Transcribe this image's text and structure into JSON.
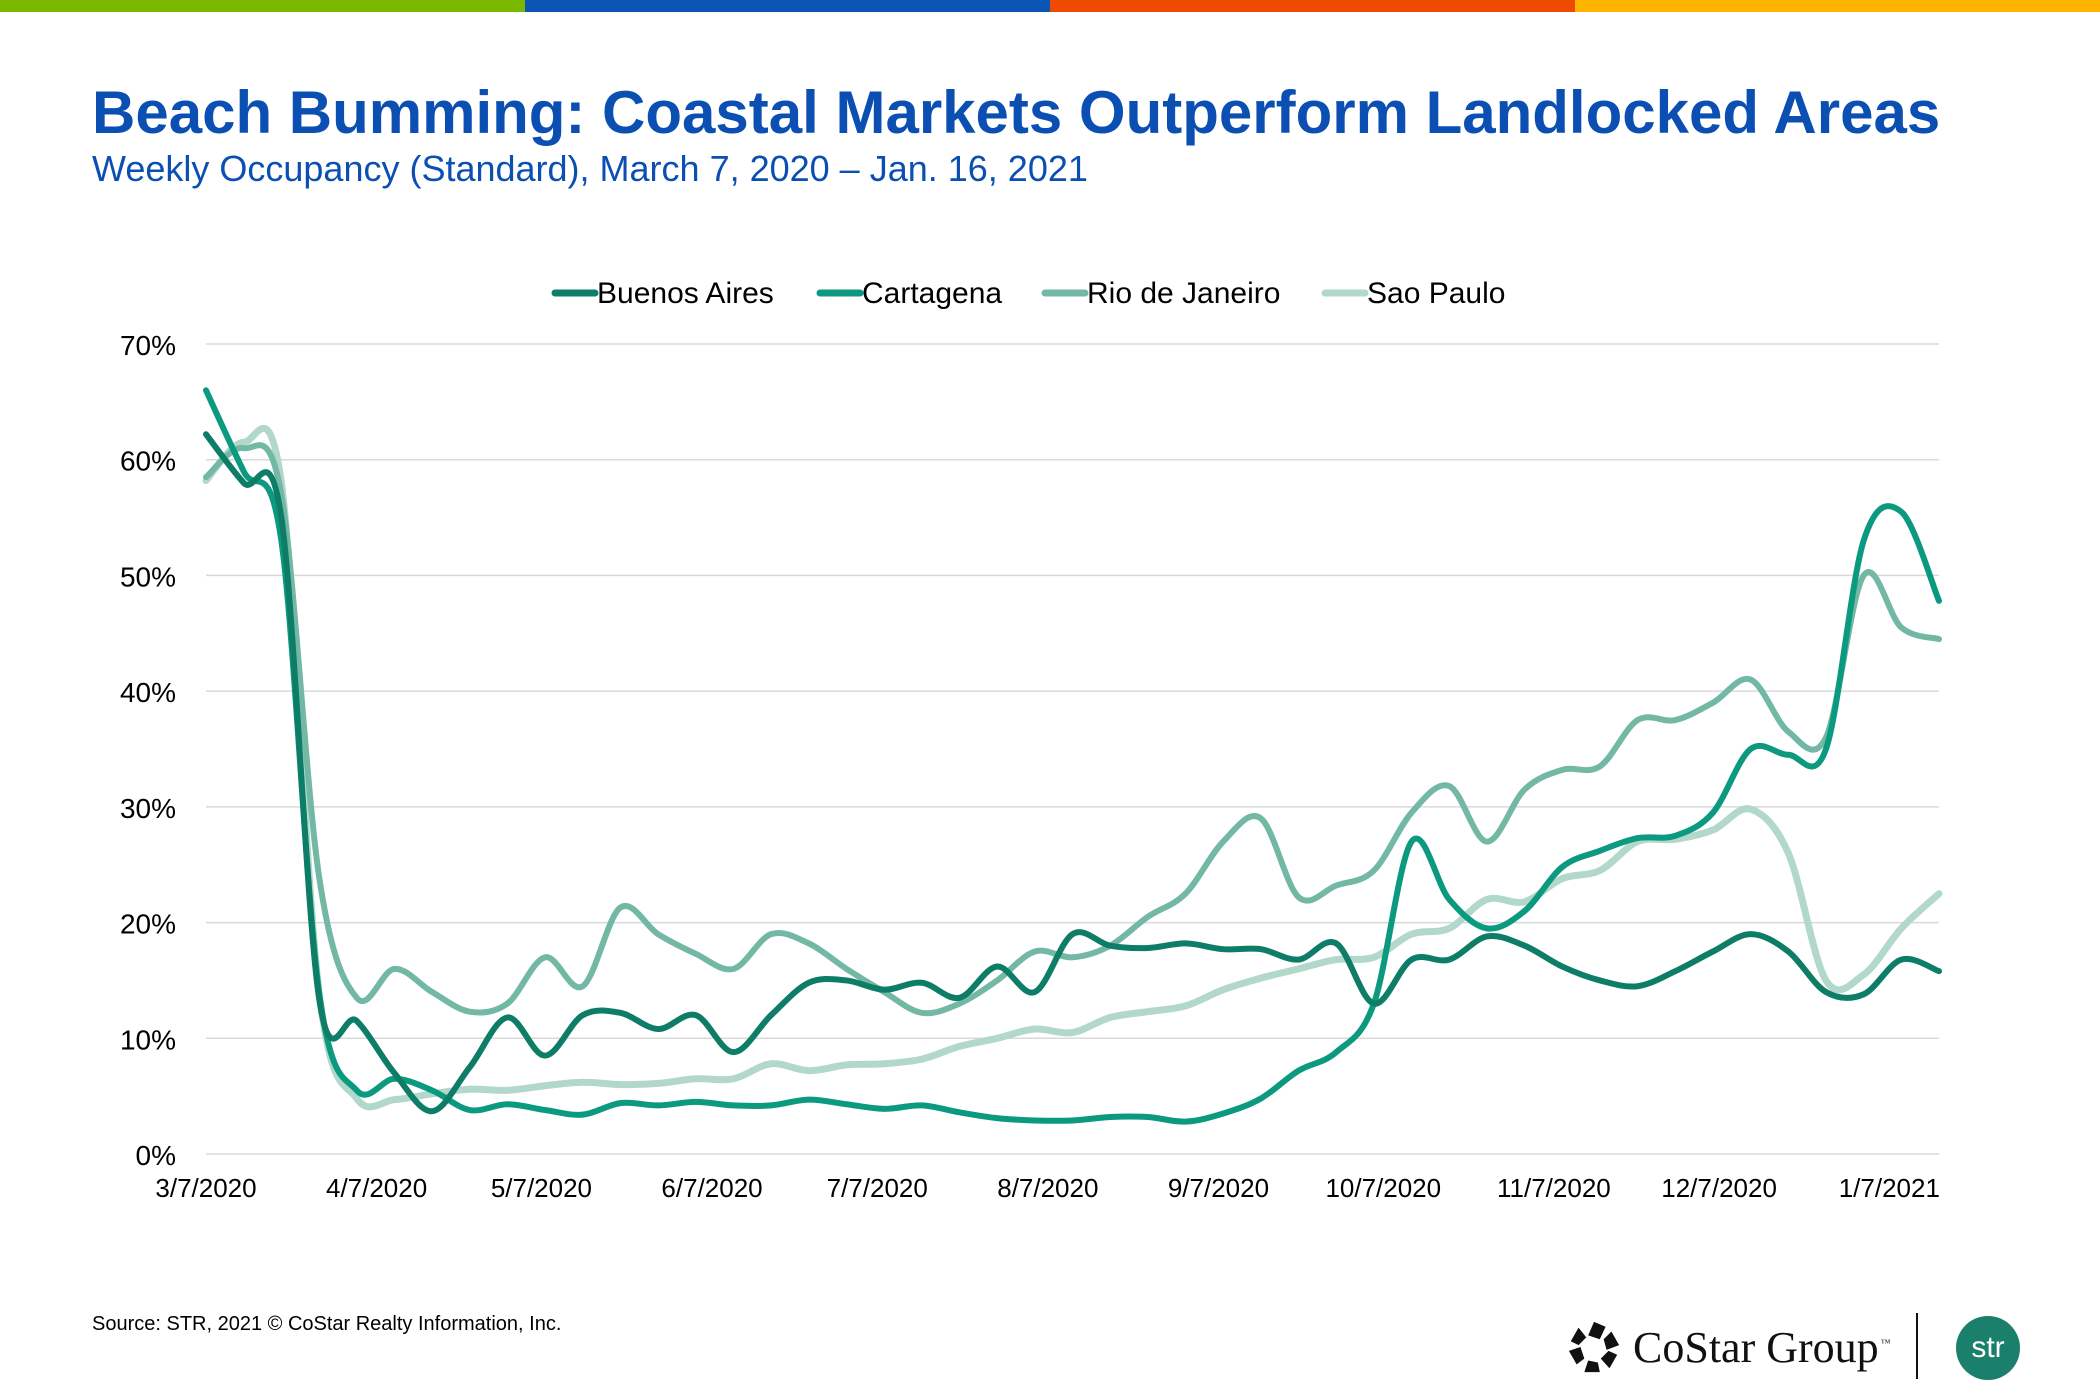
{
  "header": {
    "title": "Beach Bumming: Coastal Markets Outperform Landlocked Areas",
    "subtitle": "Weekly Occupancy (Standard), March 7, 2020 – Jan. 16, 2021",
    "bar_colors": [
      "#7AB800",
      "#0B55B5",
      "#EE4B00",
      "#FFB500"
    ]
  },
  "footer": {
    "source": "Source: STR, 2021 © CoStar Realty Information, Inc.",
    "costar_logo": "CoStar Group",
    "costar_tm": "™",
    "str_logo": "str"
  },
  "chart_data": {
    "type": "line",
    "title": "Weekly Occupancy (Standard), March 7, 2020 – Jan. 16, 2021",
    "xlabel": "",
    "ylabel": "",
    "ylim": [
      0,
      70
    ],
    "yticks": [
      0,
      10,
      20,
      30,
      40,
      50,
      60,
      70
    ],
    "ytick_labels": [
      "0%",
      "10%",
      "20%",
      "30%",
      "40%",
      "50%",
      "60%",
      "70%"
    ],
    "xtick_labels": [
      "3/7/2020",
      "4/7/2020",
      "5/7/2020",
      "6/7/2020",
      "7/7/2020",
      "8/7/2020",
      "9/7/2020",
      "10/7/2020",
      "11/7/2020",
      "12/7/2020",
      "1/7/2021"
    ],
    "xtick_weeks": [
      0,
      4.43,
      8.71,
      13.14,
      17.43,
      21.86,
      26.29,
      30.57,
      35.0,
      39.29,
      43.71
    ],
    "weeks": 46,
    "grid": true,
    "legend_position": "top-center",
    "series": [
      {
        "name": "Buenos Aires",
        "color": "#0E7D68",
        "values": [
          62.2,
          58.0,
          55.0,
          13.5,
          11.5,
          7.0,
          3.7,
          7.5,
          11.8,
          8.5,
          12.0,
          12.2,
          10.8,
          12.0,
          8.8,
          12.0,
          14.8,
          15.0,
          14.2,
          14.8,
          13.5,
          16.2,
          14.0,
          19.0,
          18.0,
          17.8,
          18.2,
          17.7,
          17.7,
          16.8,
          18.2,
          13.0,
          16.8,
          16.8,
          18.8,
          18.0,
          16.2,
          15.0,
          14.5,
          15.8,
          17.5,
          19.0,
          17.5,
          14.0,
          13.8,
          16.8,
          15.8
        ]
      },
      {
        "name": "Cartagena",
        "color": "#0B9A7F",
        "values": [
          66.0,
          59.0,
          53.0,
          14.0,
          5.5,
          6.5,
          5.5,
          3.8,
          4.3,
          3.8,
          3.4,
          4.4,
          4.2,
          4.5,
          4.2,
          4.2,
          4.7,
          4.3,
          3.9,
          4.2,
          3.6,
          3.1,
          2.9,
          2.9,
          3.2,
          3.2,
          2.8,
          3.5,
          4.8,
          7.2,
          8.8,
          13.0,
          27.0,
          22.0,
          19.5,
          21.0,
          24.8,
          26.2,
          27.3,
          27.5,
          29.5,
          35.0,
          34.5,
          35.0,
          53.0,
          55.5,
          47.8
        ]
      },
      {
        "name": "Rio de Janeiro",
        "color": "#72B8A4",
        "values": [
          58.5,
          61.0,
          57.0,
          24.0,
          13.5,
          16.0,
          14.0,
          12.3,
          13.0,
          17.0,
          14.5,
          21.3,
          19.0,
          17.3,
          16.0,
          19.0,
          18.2,
          16.0,
          14.0,
          12.2,
          13.0,
          15.0,
          17.5,
          17.0,
          18.0,
          20.5,
          22.5,
          27.0,
          29.0,
          22.2,
          23.2,
          24.5,
          29.5,
          31.8,
          27.0,
          31.5,
          33.2,
          33.5,
          37.5,
          37.5,
          39.0,
          41.0,
          36.5,
          36.0,
          50.0,
          45.5,
          44.5
        ]
      },
      {
        "name": "Sao Paulo",
        "color": "#B2D8CC",
        "values": [
          58.2,
          61.5,
          58.0,
          14.0,
          4.8,
          4.7,
          5.2,
          5.6,
          5.5,
          5.9,
          6.2,
          6.0,
          6.1,
          6.5,
          6.5,
          7.8,
          7.2,
          7.7,
          7.8,
          8.2,
          9.3,
          10.0,
          10.8,
          10.5,
          11.8,
          12.3,
          12.8,
          14.2,
          15.2,
          16.0,
          16.8,
          17.0,
          19.0,
          19.5,
          22.0,
          21.8,
          23.8,
          24.5,
          27.0,
          27.2,
          28.0,
          29.8,
          26.0,
          15.0,
          15.5,
          19.5,
          22.5
        ]
      }
    ]
  }
}
